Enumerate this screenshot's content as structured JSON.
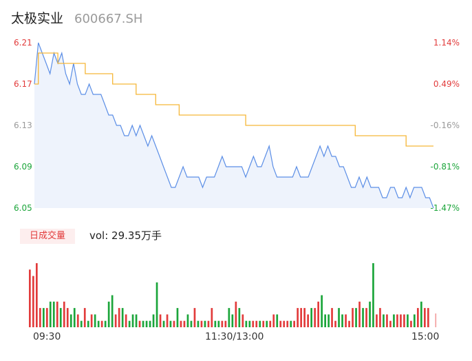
{
  "header": {
    "name": "太极实业",
    "code": "600667.SH"
  },
  "volume_panel": {
    "badge": "日成交量",
    "vol_text": "vol: 29.35万手"
  },
  "colors": {
    "up": "#e23b3b",
    "down": "#1ba53a",
    "neutral": "#9a9a9a",
    "price_line": "#5b8ee6",
    "avg_line": "#f5b637",
    "area_fill": "#eef3fc"
  },
  "chart_data": [
    {
      "type": "line",
      "title": "",
      "xlabel": "",
      "ylabel": "",
      "ylim": [
        6.05,
        6.21
      ],
      "y_ticks": [
        6.21,
        6.17,
        6.13,
        6.09,
        6.05
      ],
      "y_tick_labels": [
        "6.21",
        "6.17",
        "6.13",
        "6.09",
        "6.05"
      ],
      "y2_tick_labels": [
        "1.14%",
        "0.49%",
        "-0.16%",
        "-0.81%",
        "-1.47%"
      ],
      "x_tick_labels": [
        "09:30",
        "11:30/13:00",
        "15:00"
      ],
      "series": [
        {
          "values": [
            6.17,
            6.21,
            6.2,
            6.19,
            6.18,
            6.2,
            6.19,
            6.2,
            6.18,
            6.17,
            6.19,
            6.17,
            6.16,
            6.16,
            6.17,
            6.16,
            6.16,
            6.16,
            6.15,
            6.14,
            6.14,
            6.13,
            6.13,
            6.12,
            6.12,
            6.13,
            6.12,
            6.13,
            6.12,
            6.11,
            6.12,
            6.11,
            6.1,
            6.09,
            6.08,
            6.07,
            6.07,
            6.08,
            6.09,
            6.08,
            6.08,
            6.08,
            6.08,
            6.07,
            6.08,
            6.08,
            6.08,
            6.09,
            6.1,
            6.09,
            6.09,
            6.09,
            6.09,
            6.09,
            6.08,
            6.09,
            6.1,
            6.09,
            6.09,
            6.1,
            6.11,
            6.09,
            6.08,
            6.08,
            6.08,
            6.08,
            6.08,
            6.09,
            6.08,
            6.08,
            6.08,
            6.09,
            6.1,
            6.11,
            6.1,
            6.11,
            6.1,
            6.1,
            6.09,
            6.09,
            6.08,
            6.07,
            6.07,
            6.08,
            6.07,
            6.08,
            6.07,
            6.07,
            6.07,
            6.06,
            6.06,
            6.07,
            6.07,
            6.06,
            6.06,
            6.07,
            6.06,
            6.07,
            6.07,
            6.07,
            6.06,
            6.06,
            6.05
          ]
        },
        {
          "values": [
            6.17,
            6.2,
            6.2,
            6.2,
            6.2,
            6.2,
            6.19,
            6.19,
            6.19,
            6.19,
            6.19,
            6.19,
            6.19,
            6.18,
            6.18,
            6.18,
            6.18,
            6.18,
            6.18,
            6.18,
            6.17,
            6.17,
            6.17,
            6.17,
            6.17,
            6.17,
            6.16,
            6.16,
            6.16,
            6.16,
            6.16,
            6.15,
            6.15,
            6.15,
            6.15,
            6.15,
            6.15,
            6.14,
            6.14,
            6.14,
            6.14,
            6.14,
            6.14,
            6.14,
            6.14,
            6.14,
            6.14,
            6.14,
            6.14,
            6.14,
            6.14,
            6.14,
            6.14,
            6.14,
            6.13,
            6.13,
            6.13,
            6.13,
            6.13,
            6.13,
            6.13,
            6.13,
            6.13,
            6.13,
            6.13,
            6.13,
            6.13,
            6.13,
            6.13,
            6.13,
            6.13,
            6.13,
            6.13,
            6.13,
            6.13,
            6.13,
            6.13,
            6.13,
            6.13,
            6.13,
            6.13,
            6.13,
            6.12,
            6.12,
            6.12,
            6.12,
            6.12,
            6.12,
            6.12,
            6.12,
            6.12,
            6.12,
            6.12,
            6.12,
            6.12,
            6.11,
            6.11,
            6.11,
            6.11,
            6.11,
            6.11,
            6.11,
            6.11
          ]
        }
      ]
    },
    {
      "type": "bar",
      "title": "",
      "x_tick_labels": [
        "09:30",
        "11:30/13:00",
        "15:00"
      ],
      "values": [
        9,
        8,
        10,
        3,
        3,
        3,
        4,
        4,
        4,
        3,
        4,
        3,
        2,
        3,
        2,
        1,
        3,
        1,
        2,
        2,
        1,
        1,
        1,
        4,
        5,
        2,
        3,
        3,
        2,
        1,
        2,
        2,
        1,
        1,
        1,
        1,
        2,
        7,
        2,
        1,
        2,
        1,
        1,
        3,
        1,
        1,
        2,
        1,
        3,
        1,
        1,
        1,
        1,
        3,
        1,
        1,
        1,
        1,
        3,
        2,
        4,
        3,
        2,
        1,
        1,
        1,
        1,
        1,
        1,
        1,
        1,
        2,
        2,
        1,
        1,
        1,
        1,
        1,
        3,
        3,
        3,
        2,
        3,
        3,
        4,
        5,
        2,
        2,
        3,
        1,
        3,
        2,
        2,
        1,
        3,
        3,
        4,
        3,
        3,
        4,
        10,
        2,
        3,
        2,
        2,
        1,
        2,
        2,
        2,
        2,
        2,
        1,
        2,
        3,
        4,
        3,
        3
      ],
      "directions": [
        "up",
        "up",
        "up",
        "up",
        "down",
        "up",
        "down",
        "down",
        "up",
        "down",
        "up",
        "up",
        "down",
        "down",
        "up",
        "down",
        "up",
        "down",
        "up",
        "down",
        "down",
        "up",
        "down",
        "down",
        "down",
        "up",
        "up",
        "down",
        "up",
        "down",
        "down",
        "down",
        "up",
        "down",
        "down",
        "down",
        "down",
        "down",
        "up",
        "down",
        "up",
        "down",
        "up",
        "down",
        "up",
        "up",
        "down",
        "down",
        "up",
        "down",
        "up",
        "down",
        "up",
        "up",
        "down",
        "down",
        "up",
        "up",
        "down",
        "down",
        "up",
        "down",
        "up",
        "down",
        "down",
        "up",
        "up",
        "down",
        "up",
        "down",
        "up",
        "up",
        "down",
        "up",
        "up",
        "up",
        "down",
        "up",
        "up",
        "up",
        "up",
        "up",
        "down",
        "up",
        "up",
        "down",
        "down",
        "down",
        "up",
        "up",
        "down",
        "down",
        "up",
        "up",
        "up",
        "down",
        "up",
        "down",
        "up",
        "down",
        "down",
        "up",
        "up",
        "down",
        "up",
        "up",
        "down",
        "up",
        "up",
        "up",
        "down",
        "up",
        "down",
        "up",
        "down",
        "up",
        "up"
      ]
    }
  ]
}
